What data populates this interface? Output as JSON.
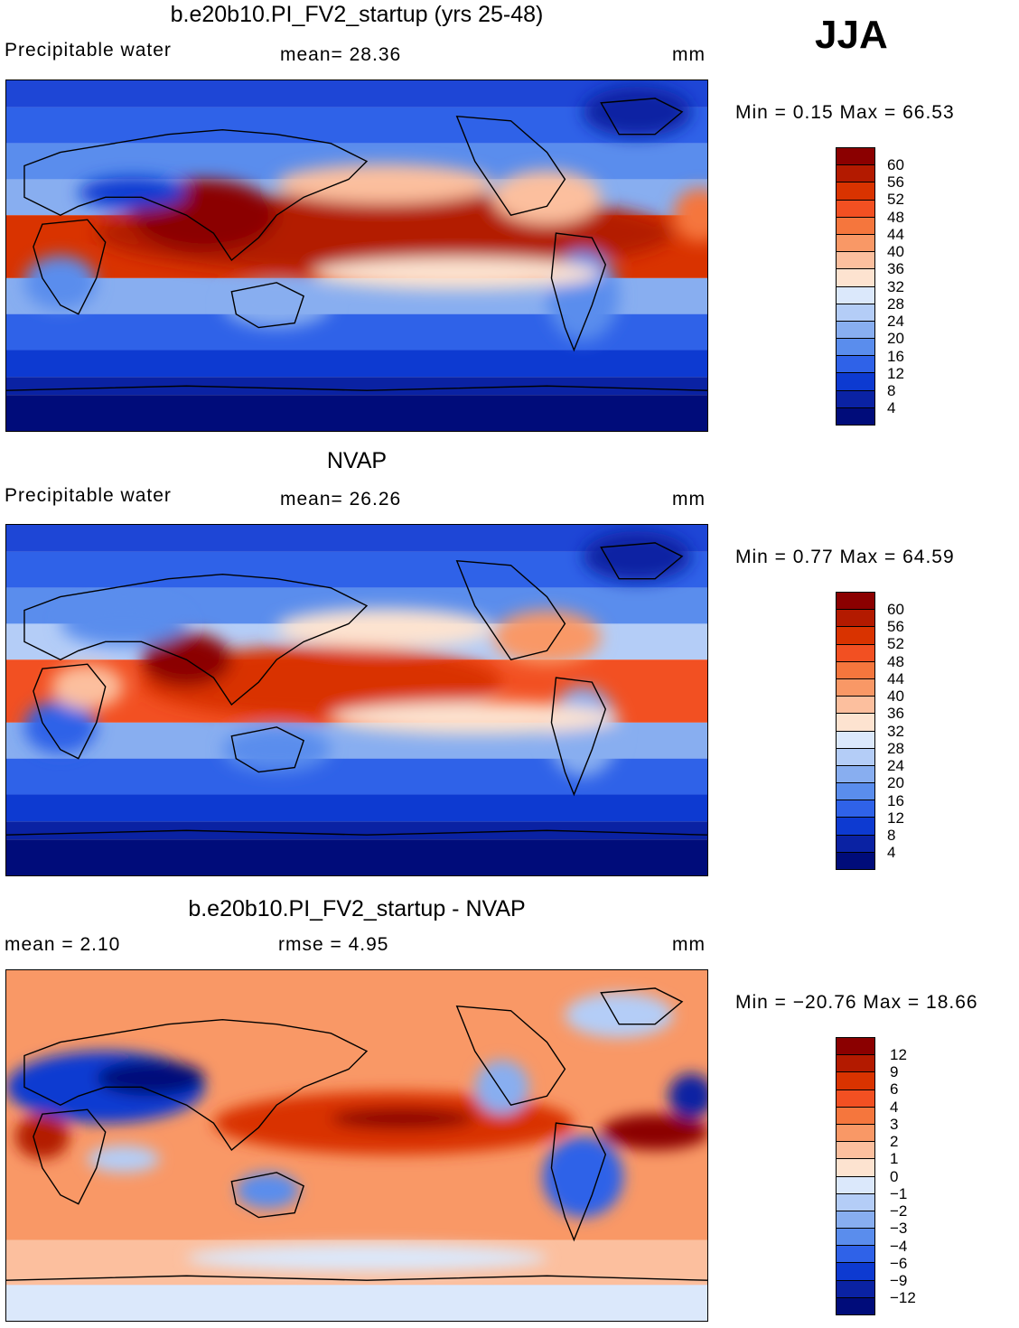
{
  "season": "JJA",
  "panels": [
    {
      "title": "b.e20b10.PI_FV2_startup (yrs 25-48)",
      "left_label": "Precipitable water",
      "mid_label": "mean=   28.36",
      "right_label": "mm",
      "minmax": "Min =    0.15  Max =    66.53",
      "colorbar_labels": [
        "60",
        "56",
        "52",
        "48",
        "44",
        "40",
        "36",
        "32",
        "28",
        "24",
        "20",
        "16",
        "12",
        "8",
        "4"
      ],
      "colors": [
        "#8b0000",
        "#b31a00",
        "#d93300",
        "#f25022",
        "#f5763d",
        "#f99866",
        "#fcbf9e",
        "#fde3d0",
        "#dbe8fb",
        "#b4cdf7",
        "#88aef0",
        "#5a8ded",
        "#2f62e8",
        "#0d3ad1",
        "#0a22a3",
        "#000c7a"
      ]
    },
    {
      "title": "NVAP",
      "left_label": "Precipitable water",
      "mid_label": "mean=   26.26",
      "right_label": "mm",
      "minmax": "Min =    0.77  Max =    64.59",
      "colorbar_labels": [
        "60",
        "56",
        "52",
        "48",
        "44",
        "40",
        "36",
        "32",
        "28",
        "24",
        "20",
        "16",
        "12",
        "8",
        "4"
      ],
      "colors": [
        "#8b0000",
        "#b31a00",
        "#d93300",
        "#f25022",
        "#f5763d",
        "#f99866",
        "#fcbf9e",
        "#fde3d0",
        "#dbe8fb",
        "#b4cdf7",
        "#88aef0",
        "#5a8ded",
        "#2f62e8",
        "#0d3ad1",
        "#0a22a3",
        "#000c7a"
      ]
    },
    {
      "title": "b.e20b10.PI_FV2_startup - NVAP",
      "left_label": "mean =      2.10",
      "mid_label": "rmse =      4.95",
      "right_label": "mm",
      "minmax": "Min =  −20.76  Max =     18.66",
      "colorbar_labels": [
        "12",
        "9",
        "6",
        "4",
        "3",
        "2",
        "1",
        "0",
        "−1",
        "−2",
        "−3",
        "−4",
        "−6",
        "−9",
        "−12"
      ],
      "colors": [
        "#8b0000",
        "#b31a00",
        "#d93300",
        "#f25022",
        "#f5763d",
        "#f99866",
        "#fcbf9e",
        "#fde3d0",
        "#dbe8fb",
        "#b4cdf7",
        "#88aef0",
        "#5a8ded",
        "#2f62e8",
        "#0d3ad1",
        "#0a22a3",
        "#000c7a"
      ]
    }
  ]
}
